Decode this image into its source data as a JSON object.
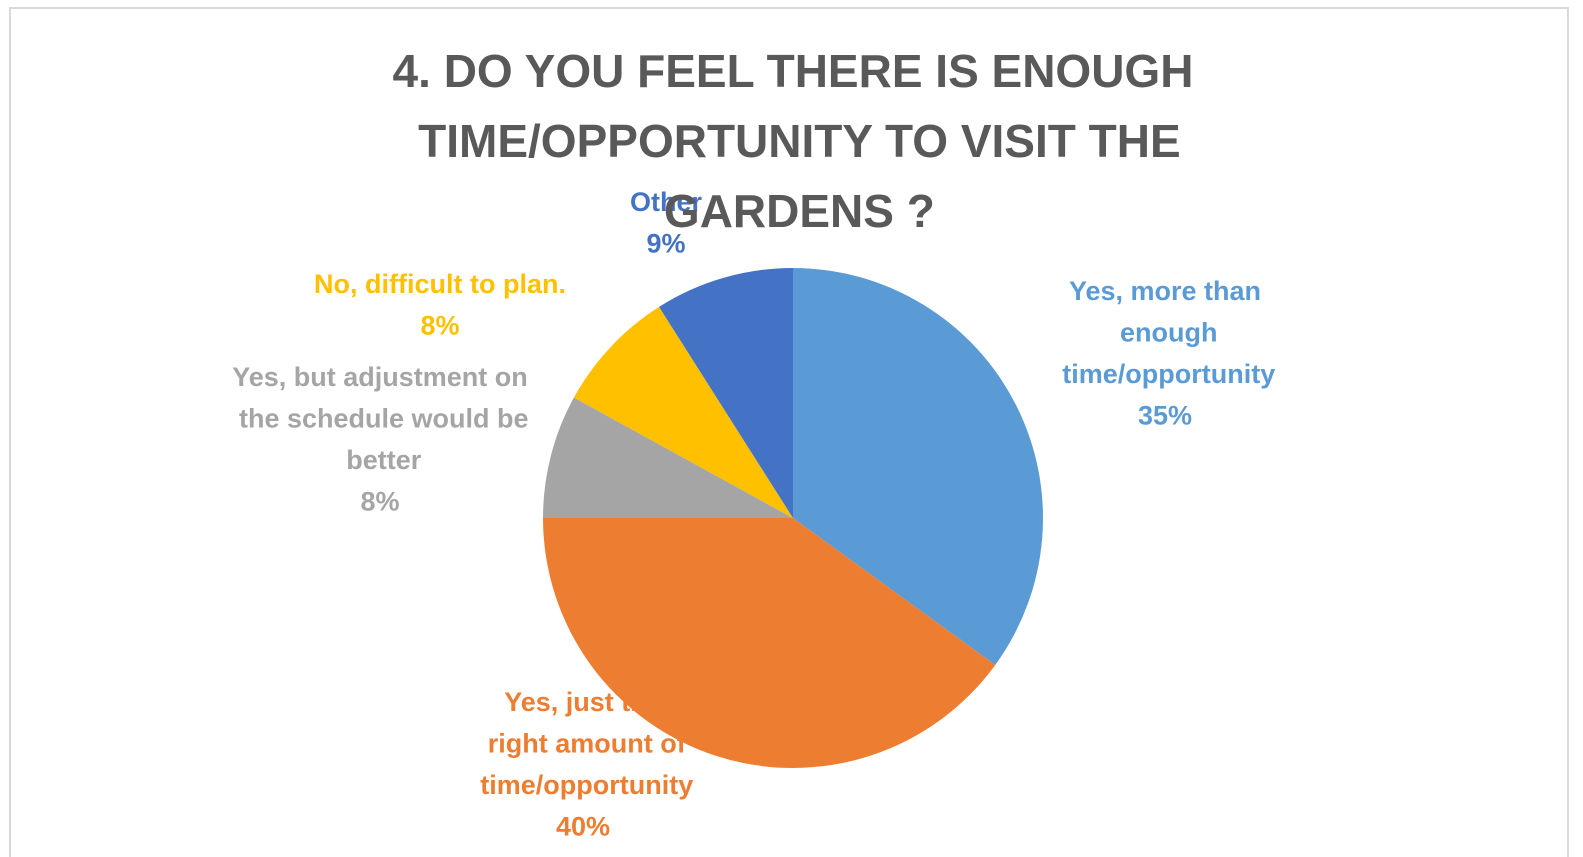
{
  "chart_data": {
    "type": "pie",
    "title": "4. DO YOU FEEL THERE IS ENOUGH TIME/OPPORTUNITY TO VISIT THE GARDENS ?",
    "categories": [
      "Yes, more than enough time/opportunity",
      "Yes, just the right amount of time/opportunity",
      "Yes, but adjustment on the schedule would be better",
      "No, difficult to plan.",
      "Other"
    ],
    "values": [
      35,
      40,
      8,
      8,
      9
    ],
    "value_labels": [
      "35%",
      "40%",
      "8%",
      "8%",
      "9%"
    ],
    "colors": [
      "#5b9bd5",
      "#ed7d31",
      "#a5a5a5",
      "#ffc000",
      "#4472c4"
    ]
  }
}
